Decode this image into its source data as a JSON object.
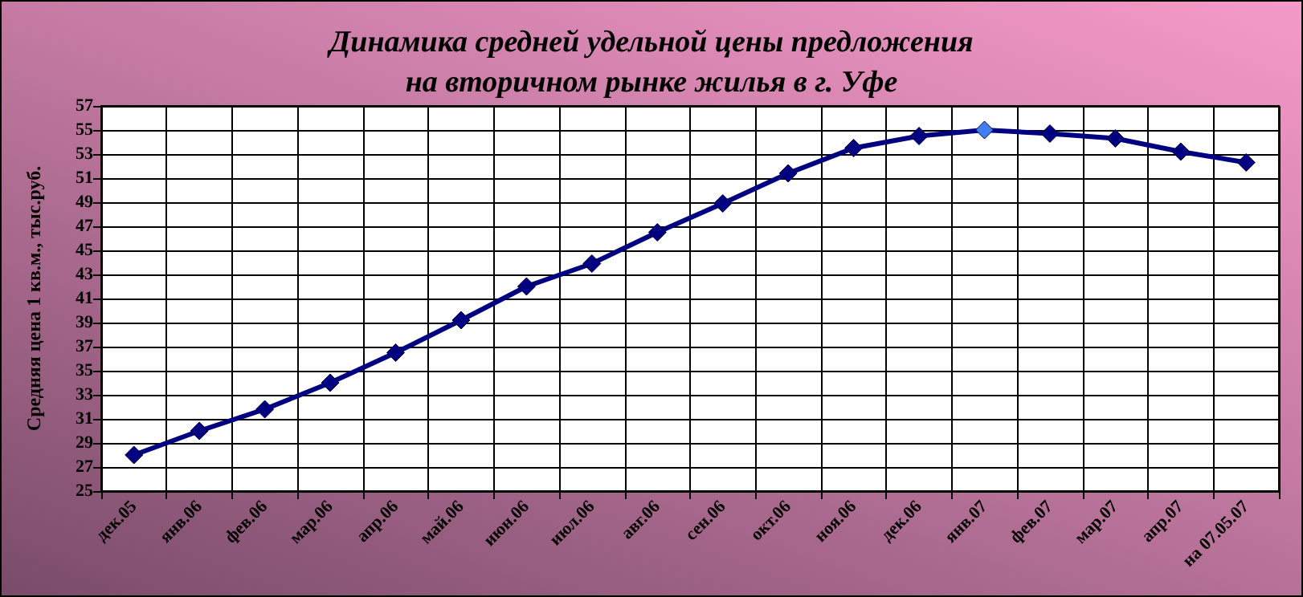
{
  "chart_data": {
    "type": "line",
    "title": "Динамика средней удельной цены предложения\nна вторичном рынке жилья в г. Уфе",
    "ylabel": "Средняя цена 1 кв.м., тыс.руб.",
    "categories": [
      "дек.05",
      "янв.06",
      "фев.06",
      "мар.06",
      "апр.06",
      "май.06",
      "июн.06",
      "июл.06",
      "авг.06",
      "сен.06",
      "окт.06",
      "ноя.06",
      "дек.06",
      "янв.07",
      "фев.07",
      "мар.07",
      "апр.07",
      "на 07.05.07"
    ],
    "values": [
      28.0,
      30.0,
      31.8,
      34.0,
      36.5,
      39.2,
      42.0,
      43.9,
      46.5,
      48.9,
      51.4,
      53.5,
      54.5,
      55.0,
      54.7,
      54.3,
      53.2,
      52.3
    ],
    "color": "#000080",
    "colors": [
      "#000080",
      "#000080",
      "#000080",
      "#000080",
      "#000080",
      "#000080",
      "#000080",
      "#000080",
      "#000080",
      "#000080",
      "#000080",
      "#000080",
      "#000080",
      "#3f7fef",
      "#000080",
      "#000080",
      "#000080",
      "#000080"
    ],
    "ylim": [
      25,
      57
    ],
    "yticks": [
      25,
      27,
      29,
      31,
      33,
      35,
      37,
      39,
      41,
      43,
      45,
      47,
      49,
      51,
      53,
      55,
      57
    ],
    "grid": true,
    "marker": "diamond",
    "line_style": "solid"
  }
}
